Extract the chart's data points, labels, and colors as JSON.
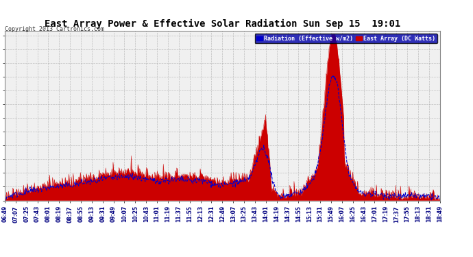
{
  "title": "East Array Power & Effective Solar Radiation Sun Sep 15  19:01",
  "copyright": "Copyright 2013 Cartronics.com",
  "legend_blue": "Radiation (Effective w/m2)",
  "legend_red": "East Array (DC Watts)",
  "yticks": [
    -0.4,
    40.1,
    80.6,
    121.2,
    161.7,
    202.2,
    242.7,
    283.3,
    323.8,
    364.3,
    404.8,
    445.4,
    485.9
  ],
  "ymin": -0.4,
  "ymax": 500,
  "bg_color": "#ffffff",
  "plot_bg_color": "#f0f0f0",
  "grid_color": "#aaaaaa",
  "title_color": "#000000",
  "blue_line_color": "#0000cc",
  "red_fill_color": "#cc0000",
  "xtick_labels": [
    "06:49",
    "07:07",
    "07:25",
    "07:43",
    "08:01",
    "08:19",
    "08:37",
    "08:55",
    "09:13",
    "09:31",
    "09:49",
    "10:07",
    "10:25",
    "10:43",
    "11:01",
    "11:19",
    "11:37",
    "11:55",
    "12:13",
    "12:31",
    "12:49",
    "13:07",
    "13:25",
    "13:43",
    "14:01",
    "14:19",
    "14:37",
    "14:55",
    "15:13",
    "15:31",
    "15:49",
    "16:07",
    "16:25",
    "16:43",
    "17:01",
    "17:19",
    "17:37",
    "17:55",
    "18:13",
    "18:31",
    "18:49"
  ]
}
